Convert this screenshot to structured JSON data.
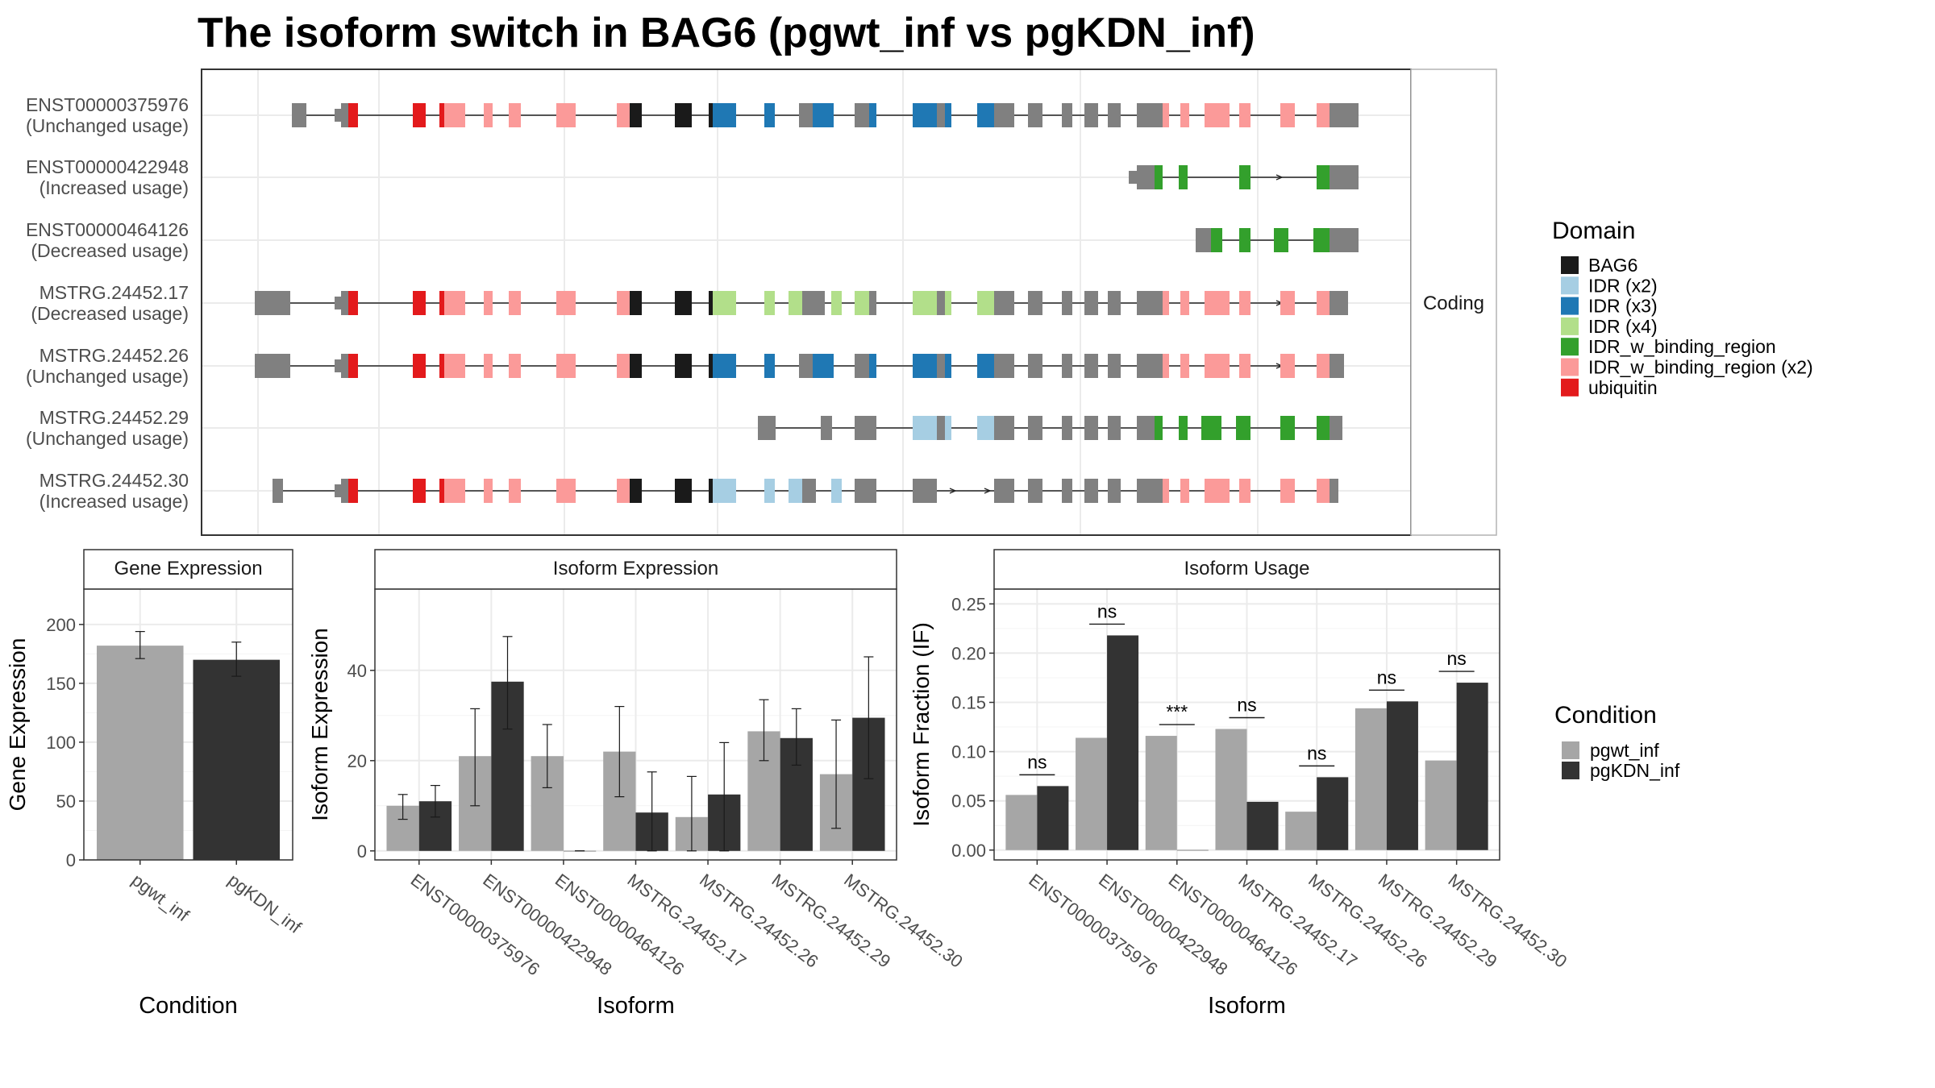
{
  "title": "The isoform switch in BAG6 (pgwt_inf vs pgKDN_inf)",
  "colors": {
    "BAG6": "#1a1a1a",
    "IDR (x2)": "#a6cee3",
    "IDR (x3)": "#1f78b4",
    "IDR (x4)": "#b2df8a",
    "IDR_w_binding_region": "#33a02c",
    "IDR_w_binding_region (x2)": "#fb9a99",
    "ubiquitin": "#e31a1c",
    "noncoding": "#808080",
    "pgwt_inf": "#a6a6a6",
    "pgKDN_inf": "#333333"
  },
  "structure": {
    "strip_label": "Coding",
    "isoforms": [
      {
        "id": "ENST00000375976",
        "usage": "(Unchanged usage)"
      },
      {
        "id": "ENST00000422948",
        "usage": "(Increased usage)"
      },
      {
        "id": "ENST00000464126",
        "usage": "(Decreased usage)"
      },
      {
        "id": "MSTRG.24452.17",
        "usage": "(Decreased usage)"
      },
      {
        "id": "MSTRG.24452.26",
        "usage": "(Unchanged usage)"
      },
      {
        "id": "MSTRG.24452.29",
        "usage": "(Unchanged usage)"
      },
      {
        "id": "MSTRG.24452.30",
        "usage": "(Increased usage)"
      }
    ]
  },
  "legend_domain": {
    "title": "Domain",
    "items": [
      "BAG6",
      "IDR (x2)",
      "IDR (x3)",
      "IDR (x4)",
      "IDR_w_binding_region",
      "IDR_w_binding_region (x2)",
      "ubiquitin"
    ]
  },
  "legend_condition": {
    "title": "Condition",
    "items": [
      "pgwt_inf",
      "pgKDN_inf"
    ]
  },
  "chart_data": [
    {
      "type": "bar",
      "title": "Gene Expression",
      "xlabel": "Condition",
      "ylabel": "Gene Expression",
      "categories": [
        "pgwt_inf",
        "pgKDN_inf"
      ],
      "values": [
        182,
        170
      ],
      "errors": [
        [
          171,
          194
        ],
        [
          156,
          185
        ]
      ],
      "ylim": [
        0,
        230
      ],
      "yticks": [
        0,
        50,
        100,
        150,
        200
      ],
      "grid": true
    },
    {
      "type": "bar",
      "title": "Isoform Expression",
      "xlabel": "Isoform",
      "ylabel": "Isoform Expression",
      "categories": [
        "ENST00000375976",
        "ENST00000422948",
        "ENST00000464126",
        "MSTRG.24452.17",
        "MSTRG.24452.26",
        "MSTRG.24452.29",
        "MSTRG.24452.30"
      ],
      "series": [
        {
          "name": "pgwt_inf",
          "values": [
            10,
            21,
            21,
            22,
            7.5,
            26.5,
            17
          ],
          "errors": [
            [
              7,
              12.5
            ],
            [
              10,
              31.5
            ],
            [
              14,
              28
            ],
            [
              12,
              32
            ],
            [
              0,
              16.5
            ],
            [
              20,
              33.5
            ],
            [
              5,
              29
            ]
          ]
        },
        {
          "name": "pgKDN_inf",
          "values": [
            11,
            37.5,
            0,
            8.5,
            12.5,
            25,
            29.5
          ],
          "errors": [
            [
              7.5,
              14.5
            ],
            [
              27,
              47.5
            ],
            [
              0,
              0
            ],
            [
              0,
              17.5
            ],
            [
              0,
              24
            ],
            [
              19,
              31.5
            ],
            [
              16,
              43
            ]
          ]
        }
      ],
      "ylim": [
        -2,
        58
      ],
      "yticks": [
        0,
        20,
        40
      ],
      "grid": true
    },
    {
      "type": "bar",
      "title": "Isoform Usage",
      "xlabel": "Isoform",
      "ylabel": "Isoform Fraction (IF)",
      "categories": [
        "ENST00000375976",
        "ENST00000422948",
        "ENST00000464126",
        "MSTRG.24452.17",
        "MSTRG.24452.26",
        "MSTRG.24452.29",
        "MSTRG.24452.30"
      ],
      "series": [
        {
          "name": "pgwt_inf",
          "values": [
            0.056,
            0.114,
            0.116,
            0.123,
            0.039,
            0.144,
            0.091
          ]
        },
        {
          "name": "pgKDN_inf",
          "values": [
            0.065,
            0.218,
            0.0,
            0.049,
            0.074,
            0.151,
            0.17
          ]
        }
      ],
      "significance": [
        "ns",
        "ns",
        "***",
        "ns",
        "ns",
        "ns",
        "ns"
      ],
      "ylim": [
        -0.01,
        0.265
      ],
      "yticks": [
        "0.00",
        "0.05",
        "0.10",
        "0.15",
        "0.20",
        "0.25"
      ],
      "grid": true
    }
  ]
}
